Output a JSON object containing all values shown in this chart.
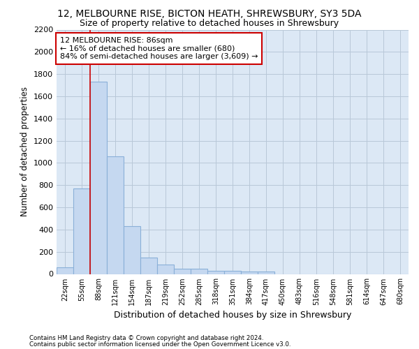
{
  "title_line1": "12, MELBOURNE RISE, BICTON HEATH, SHREWSBURY, SY3 5DA",
  "title_line2": "Size of property relative to detached houses in Shrewsbury",
  "xlabel": "Distribution of detached houses by size in Shrewsbury",
  "ylabel": "Number of detached properties",
  "footer_line1": "Contains HM Land Registry data © Crown copyright and database right 2024.",
  "footer_line2": "Contains public sector information licensed under the Open Government Licence v3.0.",
  "bar_labels": [
    "22sqm",
    "55sqm",
    "88sqm",
    "121sqm",
    "154sqm",
    "187sqm",
    "219sqm",
    "252sqm",
    "285sqm",
    "318sqm",
    "351sqm",
    "384sqm",
    "417sqm",
    "450sqm",
    "483sqm",
    "516sqm",
    "548sqm",
    "581sqm",
    "614sqm",
    "647sqm",
    "680sqm"
  ],
  "bar_values": [
    60,
    770,
    1730,
    1060,
    430,
    150,
    85,
    50,
    45,
    30,
    30,
    20,
    20,
    0,
    0,
    0,
    0,
    0,
    0,
    0,
    0
  ],
  "bar_color": "#c5d8f0",
  "bar_edge_color": "#8ab0d8",
  "grid_color": "#b8c8d8",
  "background_color": "#dce8f5",
  "vline_color": "#cc0000",
  "annotation_text": "12 MELBOURNE RISE: 86sqm\n← 16% of detached houses are smaller (680)\n84% of semi-detached houses are larger (3,609) →",
  "annotation_box_color": "#cc0000",
  "ylim": [
    0,
    2200
  ],
  "yticks": [
    0,
    200,
    400,
    600,
    800,
    1000,
    1200,
    1400,
    1600,
    1800,
    2000,
    2200
  ]
}
